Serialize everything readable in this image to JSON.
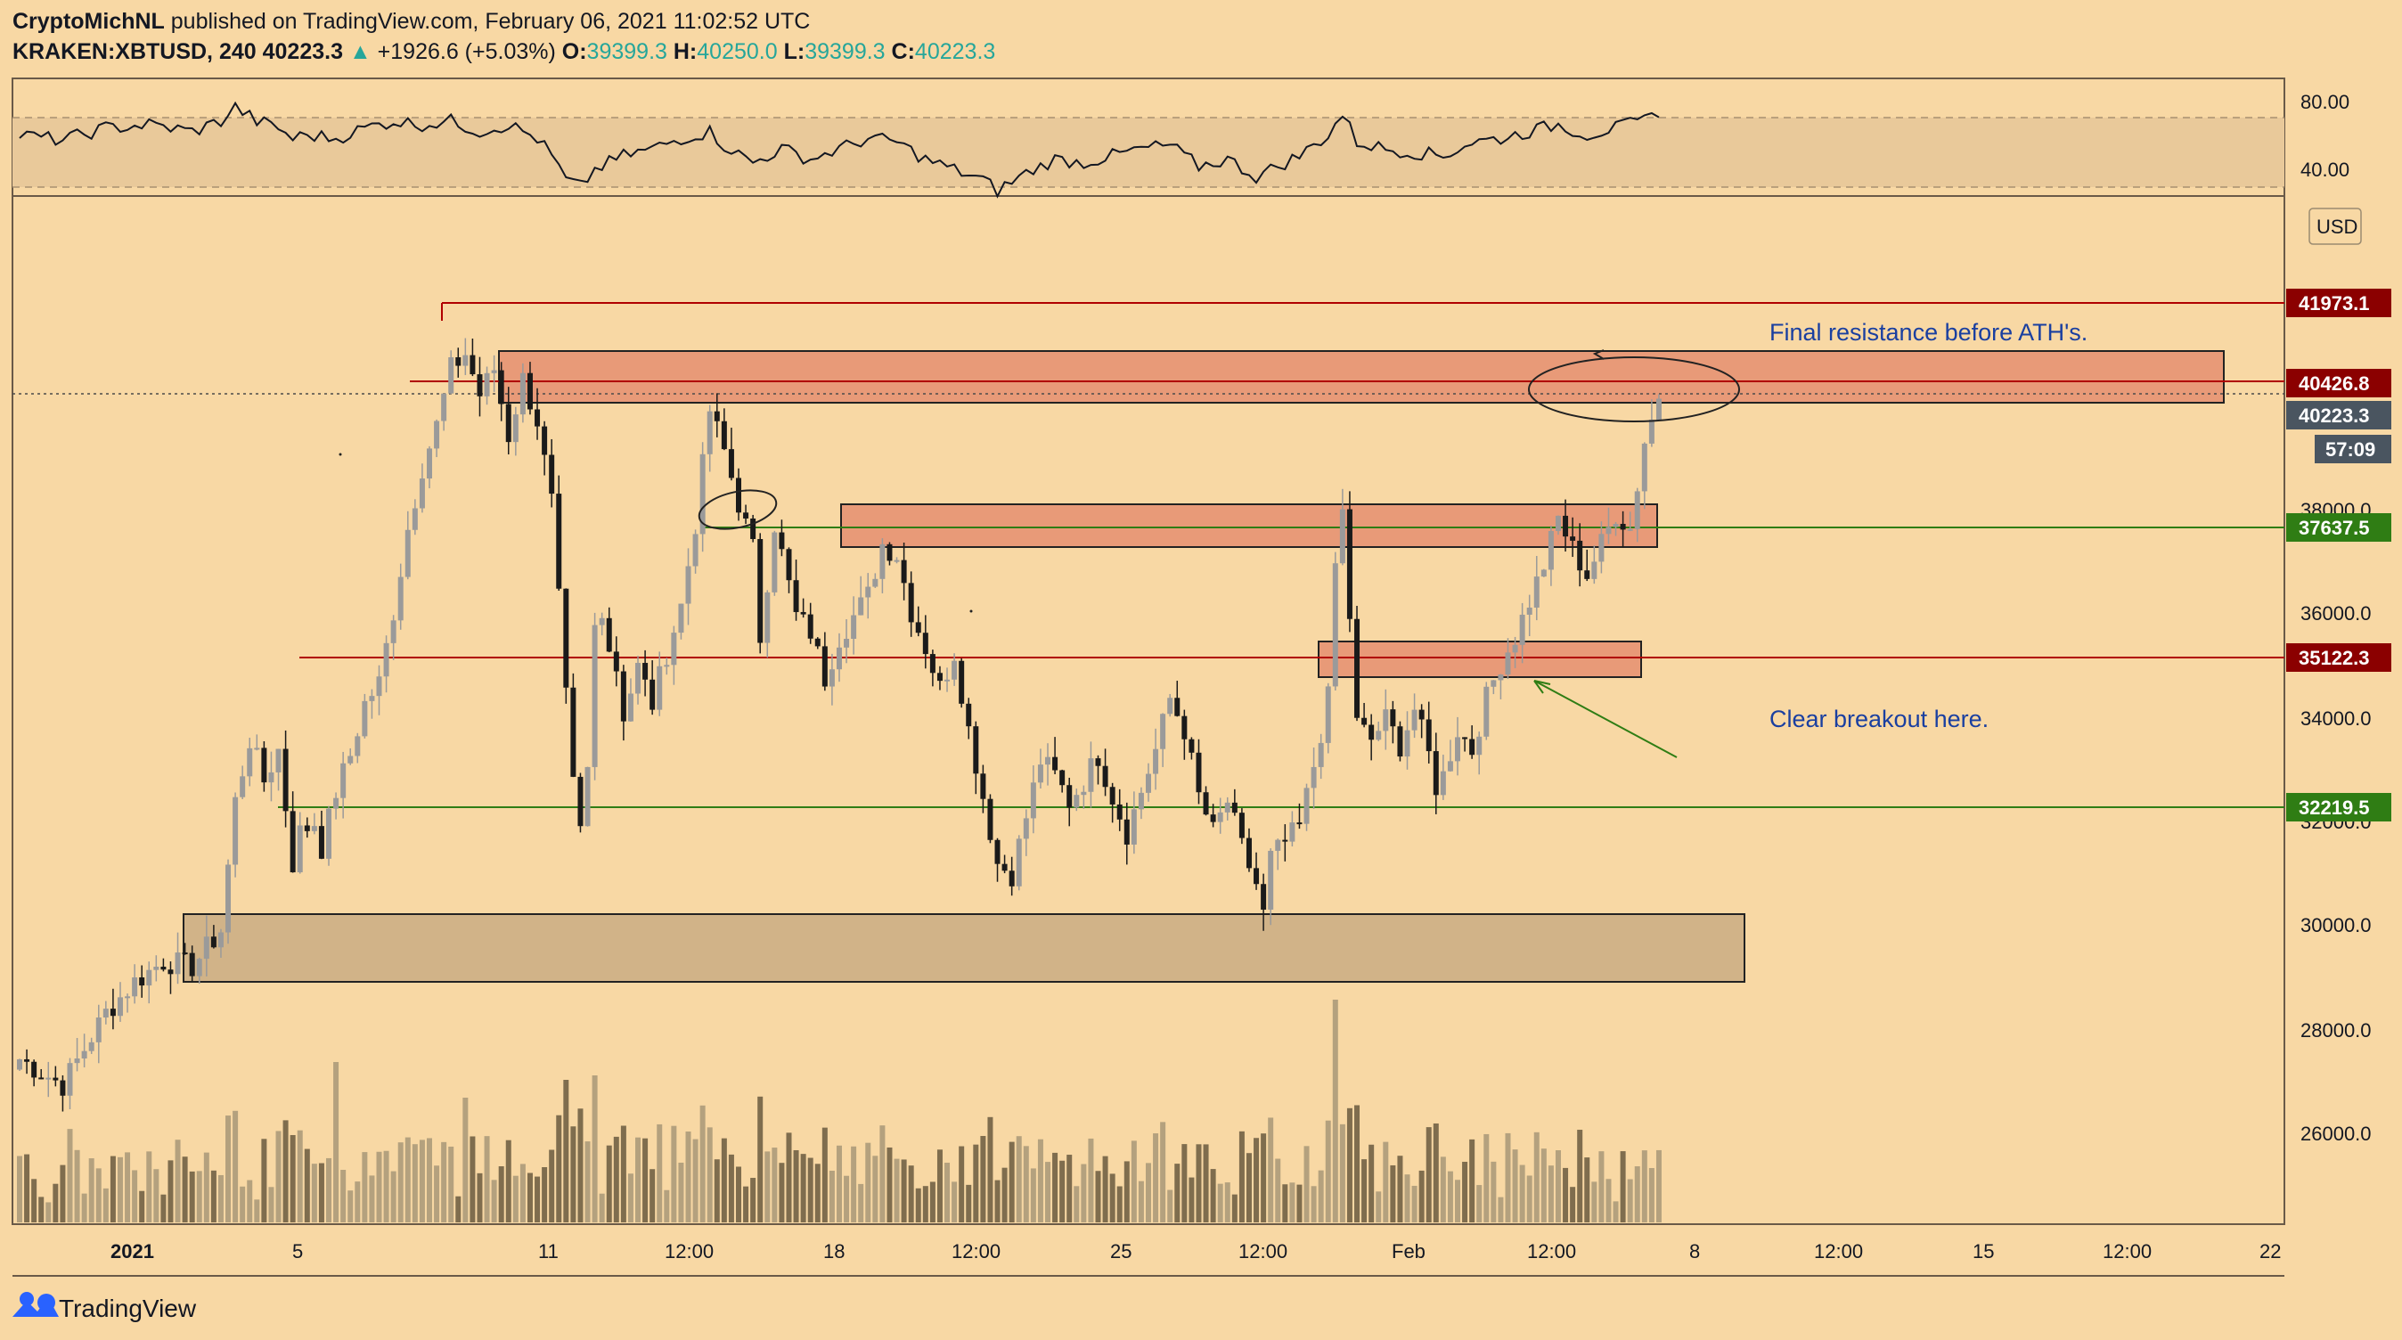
{
  "header": {
    "author": "CryptoMichNL",
    "published": "published on TradingView.com, February 06, 2021 11:02:52 UTC",
    "symbol": "KRAKEN:XBTUSD, 240",
    "price": "40223.3",
    "change_arrow": "▲",
    "change": "+1926.6 (+5.03%)",
    "o_label": "O:",
    "o_value": "39399.3",
    "h_label": "H:",
    "h_value": "40250.0",
    "l_label": "L:",
    "l_value": "39399.3",
    "c_label": "C:",
    "c_value": "40223.3"
  },
  "rsi_panel": {
    "ticks": [
      "80.00",
      "40.00"
    ]
  },
  "price_axis": {
    "currency": "USD",
    "ticks": [
      "38000.0",
      "36000.0",
      "34000.0",
      "32000.0",
      "30000.0",
      "28000.0",
      "26000.0"
    ],
    "countdown": "57:09"
  },
  "levels": [
    {
      "label": "41973.1",
      "color": "#8b0000"
    },
    {
      "label": "40426.8",
      "color": "#8b0000"
    },
    {
      "label": "40223.3",
      "color": "#4a5560"
    },
    {
      "label": "37637.5",
      "color": "#2f7d14"
    },
    {
      "label": "35122.3",
      "color": "#8b0000"
    },
    {
      "label": "32219.5",
      "color": "#2f7d14"
    }
  ],
  "time_axis": {
    "ticks": [
      "2021",
      "5",
      "11",
      "12:00",
      "18",
      "12:00",
      "25",
      "12:00",
      "Feb",
      "12:00",
      "8",
      "12:00",
      "15",
      "12:00",
      "22"
    ]
  },
  "annotations": {
    "resistance": "Final resistance before ATH's.",
    "breakout": "Clear breakout here."
  },
  "footer": {
    "brand": "TradingView"
  },
  "colors": {
    "background": "#f8d8a4",
    "resistance_zone": "#e89a78",
    "support_zone": "#d1b388",
    "level_red": "#b00000",
    "level_green": "#2f7d14",
    "annotation_text": "#1a3fa0"
  },
  "chart_data": {
    "type": "candlestick",
    "symbol": "KRAKEN:XBTUSD",
    "interval": "240",
    "ylim": [
      24400,
      41900
    ],
    "x_ticks": [
      "2021",
      "5",
      "11",
      "12:00",
      "18",
      "12:00",
      "25",
      "12:00",
      "Feb",
      "12:00",
      "8",
      "12:00",
      "15",
      "12:00",
      "22"
    ],
    "close_path": [
      [
        0,
        27400
      ],
      [
        6,
        26900
      ],
      [
        12,
        28300
      ],
      [
        16,
        28900
      ],
      [
        20,
        29300
      ],
      [
        24,
        29200
      ],
      [
        28,
        29900
      ],
      [
        30,
        32400
      ],
      [
        32,
        33600
      ],
      [
        34,
        32800
      ],
      [
        36,
        33400
      ],
      [
        38,
        31200
      ],
      [
        39,
        31800
      ],
      [
        41,
        32000
      ],
      [
        42,
        31500
      ],
      [
        44,
        32600
      ],
      [
        46,
        33300
      ],
      [
        48,
        34300
      ],
      [
        50,
        34700
      ],
      [
        52,
        36100
      ],
      [
        54,
        37700
      ],
      [
        56,
        38900
      ],
      [
        58,
        39700
      ],
      [
        60,
        40800
      ],
      [
        62,
        41100
      ],
      [
        64,
        40300
      ],
      [
        66,
        40800
      ],
      [
        68,
        39500
      ],
      [
        70,
        40600
      ],
      [
        72,
        39800
      ],
      [
        74,
        38200
      ],
      [
        75,
        36300
      ],
      [
        76,
        34400
      ],
      [
        77,
        32700
      ],
      [
        78,
        31800
      ],
      [
        79,
        33000
      ],
      [
        80,
        35800
      ],
      [
        81,
        36200
      ],
      [
        82,
        35400
      ],
      [
        83,
        35000
      ],
      [
        84,
        34100
      ],
      [
        86,
        35000
      ],
      [
        88,
        34300
      ],
      [
        90,
        35300
      ],
      [
        92,
        36200
      ],
      [
        94,
        37800
      ],
      [
        96,
        40000
      ],
      [
        98,
        39200
      ],
      [
        100,
        38200
      ],
      [
        102,
        37300
      ],
      [
        103,
        35600
      ],
      [
        104,
        36700
      ],
      [
        105,
        37800
      ],
      [
        106,
        37200
      ],
      [
        108,
        36000
      ],
      [
        110,
        35700
      ],
      [
        112,
        34800
      ],
      [
        114,
        35600
      ],
      [
        116,
        36000
      ],
      [
        118,
        36400
      ],
      [
        120,
        37400
      ],
      [
        122,
        37200
      ],
      [
        124,
        36100
      ],
      [
        126,
        35400
      ],
      [
        128,
        34600
      ],
      [
        130,
        35300
      ],
      [
        132,
        33800
      ],
      [
        134,
        32500
      ],
      [
        136,
        31200
      ],
      [
        138,
        31000
      ],
      [
        140,
        32100
      ],
      [
        142,
        33200
      ],
      [
        144,
        32900
      ],
      [
        146,
        32400
      ],
      [
        148,
        32800
      ],
      [
        150,
        33300
      ],
      [
        152,
        32500
      ],
      [
        154,
        31800
      ],
      [
        156,
        32600
      ],
      [
        158,
        33400
      ],
      [
        160,
        34400
      ],
      [
        162,
        33800
      ],
      [
        164,
        32500
      ],
      [
        166,
        31800
      ],
      [
        168,
        32400
      ],
      [
        170,
        31500
      ],
      [
        172,
        30800
      ],
      [
        173,
        30200
      ],
      [
        174,
        31300
      ],
      [
        176,
        31600
      ],
      [
        178,
        31900
      ],
      [
        180,
        33100
      ],
      [
        182,
        34400
      ],
      [
        183,
        37000
      ],
      [
        184,
        38000
      ],
      [
        185,
        36000
      ],
      [
        186,
        33900
      ],
      [
        188,
        33600
      ],
      [
        190,
        34000
      ],
      [
        192,
        33500
      ],
      [
        194,
        34200
      ],
      [
        196,
        33300
      ],
      [
        197,
        32700
      ],
      [
        198,
        32900
      ],
      [
        200,
        33800
      ],
      [
        202,
        33400
      ],
      [
        204,
        34400
      ],
      [
        206,
        35100
      ],
      [
        208,
        35600
      ],
      [
        210,
        36300
      ],
      [
        212,
        37000
      ],
      [
        214,
        37900
      ],
      [
        216,
        37300
      ],
      [
        218,
        36800
      ],
      [
        220,
        37400
      ],
      [
        222,
        38000
      ],
      [
        224,
        37700
      ],
      [
        226,
        39400
      ],
      [
        228,
        40223
      ]
    ],
    "zones": [
      {
        "type": "resistance",
        "y_range": [
          39700,
          40700
        ]
      },
      {
        "type": "resistance",
        "y_range": [
          37300,
          38100
        ]
      },
      {
        "type": "resistance",
        "y_range": [
          34800,
          35500
        ]
      },
      {
        "type": "support",
        "y_range": [
          28900,
          30200
        ]
      }
    ],
    "horizontal_levels": [
      41973.1,
      40426.8,
      37637.5,
      35122.3,
      32219.5
    ],
    "rsi": {
      "ylim": [
        20,
        100
      ],
      "bands": [
        70,
        30
      ],
      "values": [
        [
          0,
          60
        ],
        [
          6,
          57
        ],
        [
          12,
          64
        ],
        [
          18,
          66
        ],
        [
          24,
          62
        ],
        [
          28,
          68
        ],
        [
          30,
          76
        ],
        [
          33,
          68
        ],
        [
          36,
          64
        ],
        [
          38,
          58
        ],
        [
          40,
          60
        ],
        [
          44,
          58
        ],
        [
          48,
          64
        ],
        [
          52,
          68
        ],
        [
          56,
          66
        ],
        [
          60,
          68
        ],
        [
          64,
          62
        ],
        [
          68,
          66
        ],
        [
          72,
          58
        ],
        [
          74,
          48
        ],
        [
          76,
          34
        ],
        [
          78,
          30
        ],
        [
          80,
          40
        ],
        [
          84,
          48
        ],
        [
          88,
          52
        ],
        [
          92,
          58
        ],
        [
          96,
          62
        ],
        [
          98,
          54
        ],
        [
          102,
          44
        ],
        [
          106,
          52
        ],
        [
          110,
          46
        ],
        [
          114,
          52
        ],
        [
          118,
          58
        ],
        [
          122,
          56
        ],
        [
          126,
          46
        ],
        [
          130,
          40
        ],
        [
          134,
          34
        ],
        [
          136,
          28
        ],
        [
          140,
          38
        ],
        [
          144,
          46
        ],
        [
          148,
          44
        ],
        [
          152,
          48
        ],
        [
          156,
          52
        ],
        [
          160,
          54
        ],
        [
          164,
          42
        ],
        [
          168,
          46
        ],
        [
          172,
          36
        ],
        [
          174,
          40
        ],
        [
          178,
          48
        ],
        [
          182,
          60
        ],
        [
          184,
          72
        ],
        [
          186,
          56
        ],
        [
          190,
          52
        ],
        [
          194,
          50
        ],
        [
          198,
          48
        ],
        [
          202,
          56
        ],
        [
          206,
          58
        ],
        [
          210,
          62
        ],
        [
          214,
          66
        ],
        [
          218,
          60
        ],
        [
          222,
          64
        ],
        [
          226,
          68
        ],
        [
          228,
          74
        ]
      ]
    }
  }
}
